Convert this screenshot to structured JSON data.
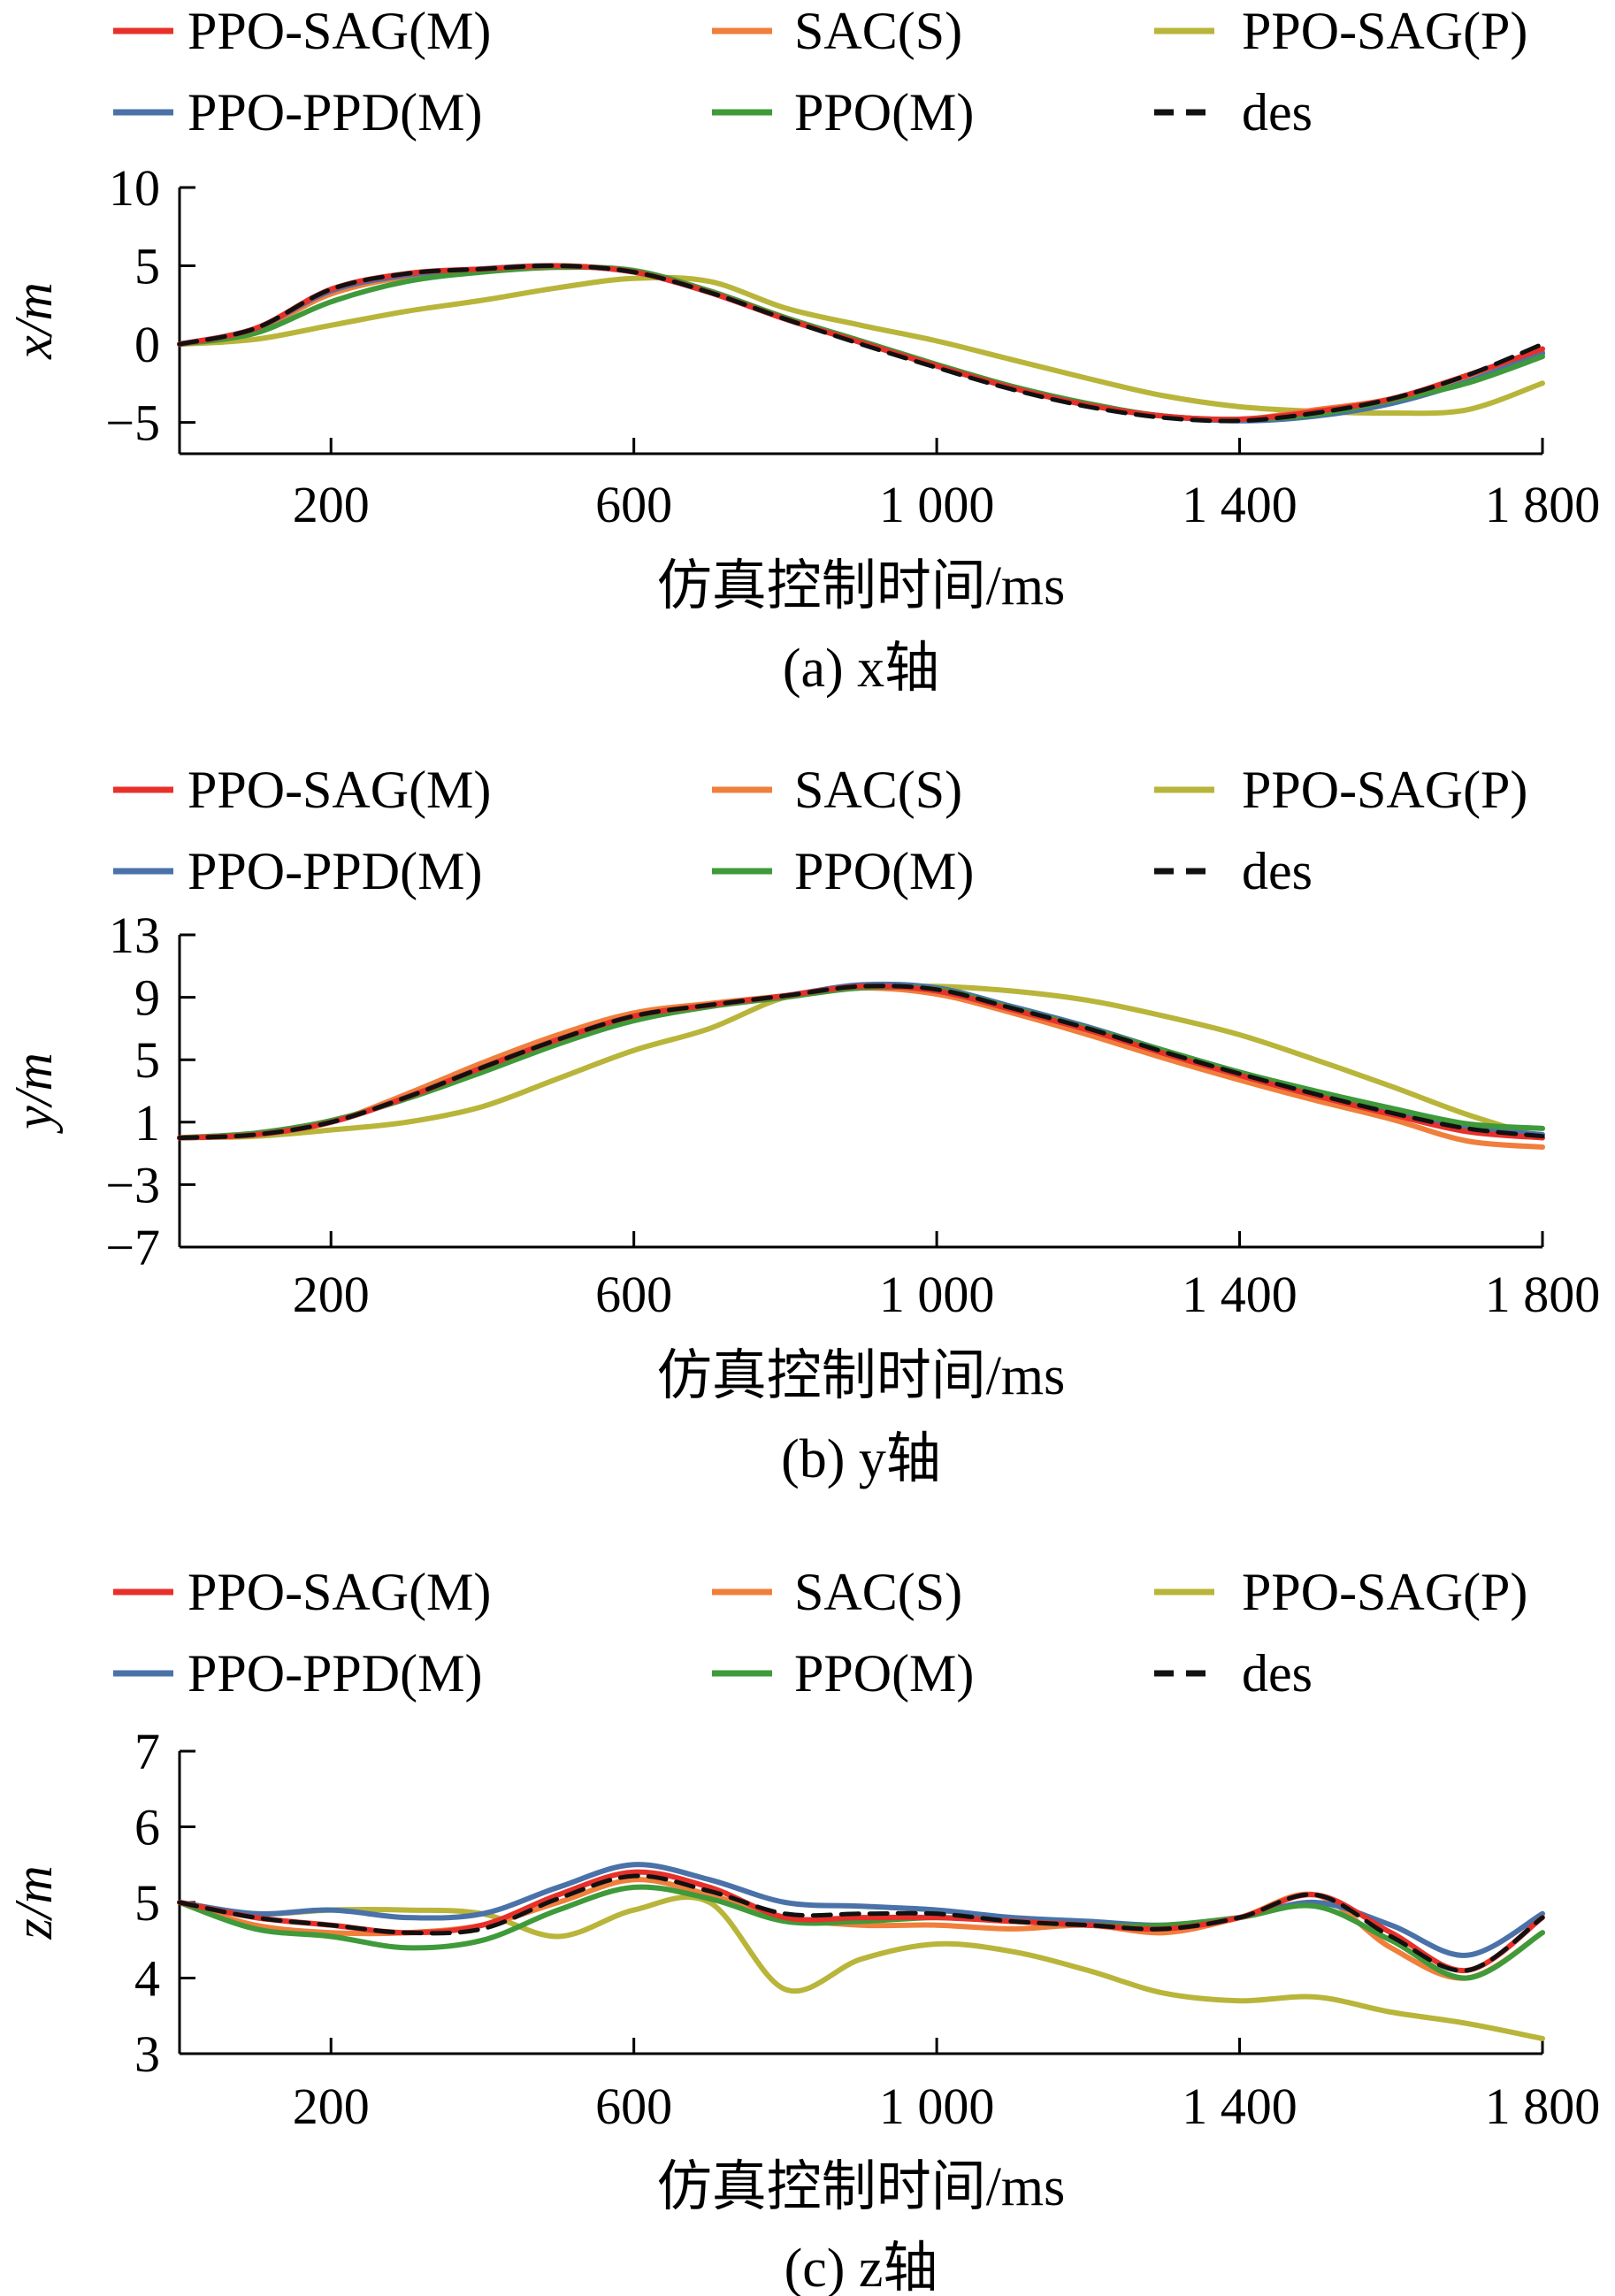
{
  "legend": [
    {
      "name": "PPO-SAG(M)",
      "color": "#e8302a",
      "dash": false
    },
    {
      "name": "SAC(S)",
      "color": "#f07f3c",
      "dash": false
    },
    {
      "name": "PPO-SAG(P)",
      "color": "#b8b53a",
      "dash": false
    },
    {
      "name": "PPO-PPD(M)",
      "color": "#4a72a8",
      "dash": false
    },
    {
      "name": "PPO(M)",
      "color": "#3f9a3a",
      "dash": false
    },
    {
      "name": "des",
      "color": "#111111",
      "dash": true
    }
  ],
  "chart_data": [
    {
      "type": "line",
      "caption": "(a) x轴",
      "xlabel": "仿真控制时间/ms",
      "ylabel": "x/m",
      "xlim": [
        0,
        1800
      ],
      "ylim": [
        -7,
        10
      ],
      "xticks": [
        200,
        600,
        1000,
        1400,
        1800
      ],
      "xtick_labels": [
        "200",
        "600",
        "1 000",
        "1 400",
        "1 800"
      ],
      "yticks": [
        10,
        5,
        0,
        -5
      ],
      "ytick_labels": [
        "10",
        "5",
        "0",
        "−5"
      ],
      "x": [
        0,
        100,
        200,
        300,
        400,
        500,
        600,
        700,
        800,
        900,
        1000,
        1100,
        1200,
        1300,
        1400,
        1500,
        1600,
        1700,
        1800
      ],
      "series": [
        {
          "name": "PPO-SAG(M)",
          "values": [
            0,
            1.0,
            3.5,
            4.5,
            4.8,
            5.0,
            4.6,
            3.3,
            1.6,
            0.1,
            -1.4,
            -2.8,
            -3.9,
            -4.6,
            -4.8,
            -4.3,
            -3.5,
            -2.0,
            -0.3
          ]
        },
        {
          "name": "SAC(S)",
          "values": [
            0,
            0.9,
            3.2,
            4.3,
            4.7,
            5.0,
            4.6,
            3.3,
            1.6,
            0.1,
            -1.4,
            -2.8,
            -3.9,
            -4.6,
            -4.8,
            -4.2,
            -3.5,
            -2.1,
            -0.5
          ]
        },
        {
          "name": "PPO-SAG(P)",
          "values": [
            0,
            0.3,
            1.2,
            2.1,
            2.8,
            3.6,
            4.2,
            4.0,
            2.3,
            1.2,
            0.2,
            -1.0,
            -2.2,
            -3.3,
            -4.0,
            -4.3,
            -4.4,
            -4.2,
            -2.5
          ]
        },
        {
          "name": "PPO-PPD(M)",
          "values": [
            0,
            1.0,
            3.4,
            4.4,
            4.8,
            5.0,
            4.6,
            3.3,
            1.6,
            0.1,
            -1.4,
            -2.8,
            -3.9,
            -4.6,
            -4.9,
            -4.6,
            -3.8,
            -2.4,
            -0.6
          ]
        },
        {
          "name": "PPO(M)",
          "values": [
            0,
            0.7,
            2.7,
            4.0,
            4.6,
            4.9,
            4.7,
            3.4,
            1.7,
            0.2,
            -1.3,
            -2.7,
            -3.8,
            -4.6,
            -4.8,
            -4.5,
            -3.6,
            -2.5,
            -0.8
          ]
        },
        {
          "name": "des",
          "values": [
            0,
            1.0,
            3.5,
            4.5,
            4.8,
            5.0,
            4.6,
            3.3,
            1.6,
            0.0,
            -1.5,
            -2.9,
            -4.0,
            -4.7,
            -4.9,
            -4.4,
            -3.5,
            -2.0,
            0
          ]
        }
      ]
    },
    {
      "type": "line",
      "caption": "(b) y轴",
      "xlabel": "仿真控制时间/ms",
      "ylabel": "y/m",
      "xlim": [
        0,
        1800
      ],
      "ylim": [
        -7,
        13
      ],
      "xticks": [
        200,
        600,
        1000,
        1400,
        1800
      ],
      "xtick_labels": [
        "200",
        "600",
        "1 000",
        "1 400",
        "1 800"
      ],
      "yticks": [
        13,
        9,
        5,
        1,
        -3,
        -7
      ],
      "ytick_labels": [
        "13",
        "9",
        "5",
        "1",
        "−3",
        "−7"
      ],
      "x": [
        0,
        100,
        200,
        300,
        400,
        500,
        600,
        700,
        800,
        900,
        1000,
        1100,
        1200,
        1300,
        1400,
        1500,
        1600,
        1700,
        1800
      ],
      "series": [
        {
          "name": "PPO-SAG(M)",
          "values": [
            0.0,
            0.2,
            1.0,
            2.6,
            4.5,
            6.3,
            7.8,
            8.5,
            9.1,
            9.7,
            9.4,
            8.2,
            6.9,
            5.4,
            4.0,
            2.7,
            1.5,
            0.4,
            0.0
          ]
        },
        {
          "name": "SAC(S)",
          "values": [
            0.0,
            0.2,
            1.0,
            2.8,
            4.8,
            6.6,
            8.0,
            8.6,
            9.1,
            9.6,
            9.2,
            8.0,
            6.6,
            5.1,
            3.7,
            2.4,
            1.2,
            -0.2,
            -0.6
          ]
        },
        {
          "name": "PPO-SAG(P)",
          "values": [
            0.0,
            0.1,
            0.5,
            1.0,
            2.0,
            3.8,
            5.6,
            7.0,
            9.0,
            9.6,
            9.7,
            9.4,
            8.8,
            7.8,
            6.6,
            5.0,
            3.3,
            1.5,
            0.0
          ]
        },
        {
          "name": "PPO-PPD(M)",
          "values": [
            0.0,
            0.2,
            1.0,
            2.6,
            4.5,
            6.3,
            7.7,
            8.5,
            9.1,
            9.8,
            9.6,
            8.4,
            7.1,
            5.6,
            4.2,
            2.9,
            1.7,
            0.7,
            0.2
          ]
        },
        {
          "name": "PPO(M)",
          "values": [
            0.0,
            0.3,
            1.1,
            2.5,
            4.2,
            6.0,
            7.5,
            8.4,
            9.0,
            9.6,
            9.5,
            8.3,
            7.0,
            5.6,
            4.2,
            3.0,
            1.9,
            0.9,
            0.6
          ]
        },
        {
          "name": "des",
          "values": [
            0.0,
            0.2,
            1.0,
            2.6,
            4.5,
            6.3,
            7.8,
            8.5,
            9.1,
            9.7,
            9.5,
            8.3,
            7.0,
            5.5,
            4.1,
            2.8,
            1.6,
            0.6,
            0.1
          ]
        }
      ]
    },
    {
      "type": "line",
      "caption": "(c) z轴",
      "xlabel": "仿真控制时间/ms",
      "ylabel": "z/m",
      "xlim": [
        0,
        1800
      ],
      "ylim": [
        3,
        7
      ],
      "xticks": [
        200,
        600,
        1000,
        1400,
        1800
      ],
      "xtick_labels": [
        "200",
        "600",
        "1 000",
        "1 400",
        "1 800"
      ],
      "yticks": [
        7,
        6,
        5,
        4,
        3
      ],
      "ytick_labels": [
        "7",
        "6",
        "5",
        "4",
        "3"
      ],
      "x": [
        0,
        100,
        200,
        300,
        400,
        500,
        600,
        700,
        800,
        900,
        1000,
        1100,
        1200,
        1300,
        1400,
        1500,
        1600,
        1700,
        1800
      ],
      "series": [
        {
          "name": "PPO-SAG(M)",
          "values": [
            5.0,
            4.8,
            4.7,
            4.6,
            4.7,
            5.1,
            5.4,
            5.2,
            4.8,
            4.8,
            4.8,
            4.75,
            4.7,
            4.65,
            4.8,
            5.1,
            4.6,
            4.1,
            4.8
          ]
        },
        {
          "name": "SAC(S)",
          "values": [
            5.0,
            4.7,
            4.6,
            4.6,
            4.7,
            5.0,
            5.3,
            5.1,
            4.8,
            4.7,
            4.7,
            4.65,
            4.7,
            4.6,
            4.8,
            5.1,
            4.4,
            4.0,
            4.6
          ]
        },
        {
          "name": "PPO-SAG(P)",
          "values": [
            5.0,
            4.85,
            4.9,
            4.9,
            4.85,
            4.55,
            4.9,
            5.0,
            3.85,
            4.25,
            4.45,
            4.35,
            4.1,
            3.8,
            3.7,
            3.75,
            3.55,
            3.4,
            3.2
          ]
        },
        {
          "name": "PPO-PPD(M)",
          "values": [
            5.0,
            4.85,
            4.9,
            4.8,
            4.85,
            5.2,
            5.5,
            5.3,
            5.0,
            4.95,
            4.9,
            4.8,
            4.75,
            4.7,
            4.8,
            5.0,
            4.7,
            4.3,
            4.85
          ]
        },
        {
          "name": "PPO(M)",
          "values": [
            5.0,
            4.65,
            4.55,
            4.4,
            4.5,
            4.9,
            5.2,
            5.05,
            4.75,
            4.75,
            4.8,
            4.75,
            4.7,
            4.7,
            4.8,
            4.95,
            4.5,
            4.0,
            4.6
          ]
        },
        {
          "name": "des",
          "values": [
            5.0,
            4.8,
            4.7,
            4.6,
            4.65,
            5.05,
            5.35,
            5.15,
            4.85,
            4.85,
            4.85,
            4.75,
            4.7,
            4.65,
            4.8,
            5.1,
            4.55,
            4.1,
            4.8
          ]
        }
      ]
    }
  ]
}
